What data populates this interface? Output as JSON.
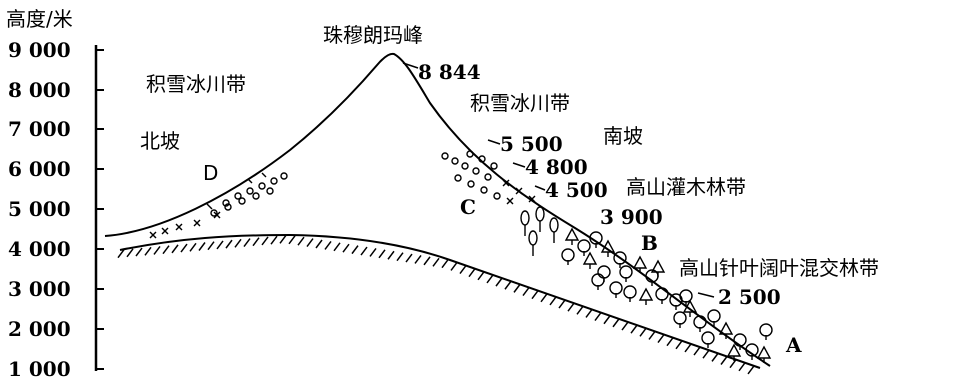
{
  "axis": {
    "title": "高度/米",
    "ticks": [
      "9 000",
      "8 000",
      "7 000",
      "6 000",
      "5 000",
      "4 000",
      "3 000",
      "2 000",
      "1 000"
    ]
  },
  "peak": {
    "name": "珠穆朗玛峰",
    "height": "8 844"
  },
  "north": {
    "slope_label": "北坡",
    "snow_zone": "积雪冰川带",
    "point": "D"
  },
  "south": {
    "slope_label": "南坡",
    "snow_zone": "积雪冰川带",
    "marks": [
      "5 500",
      "4 800",
      "4 500",
      "3 900",
      "2 500"
    ],
    "shrub_zone": "高山灌木林带",
    "mixed_forest_zone": "高山针叶阔叶混交林带",
    "points": {
      "a": "A",
      "b": "B",
      "c": "C"
    }
  },
  "colors": {
    "ink": "#000000",
    "paper": "#ffffff"
  }
}
